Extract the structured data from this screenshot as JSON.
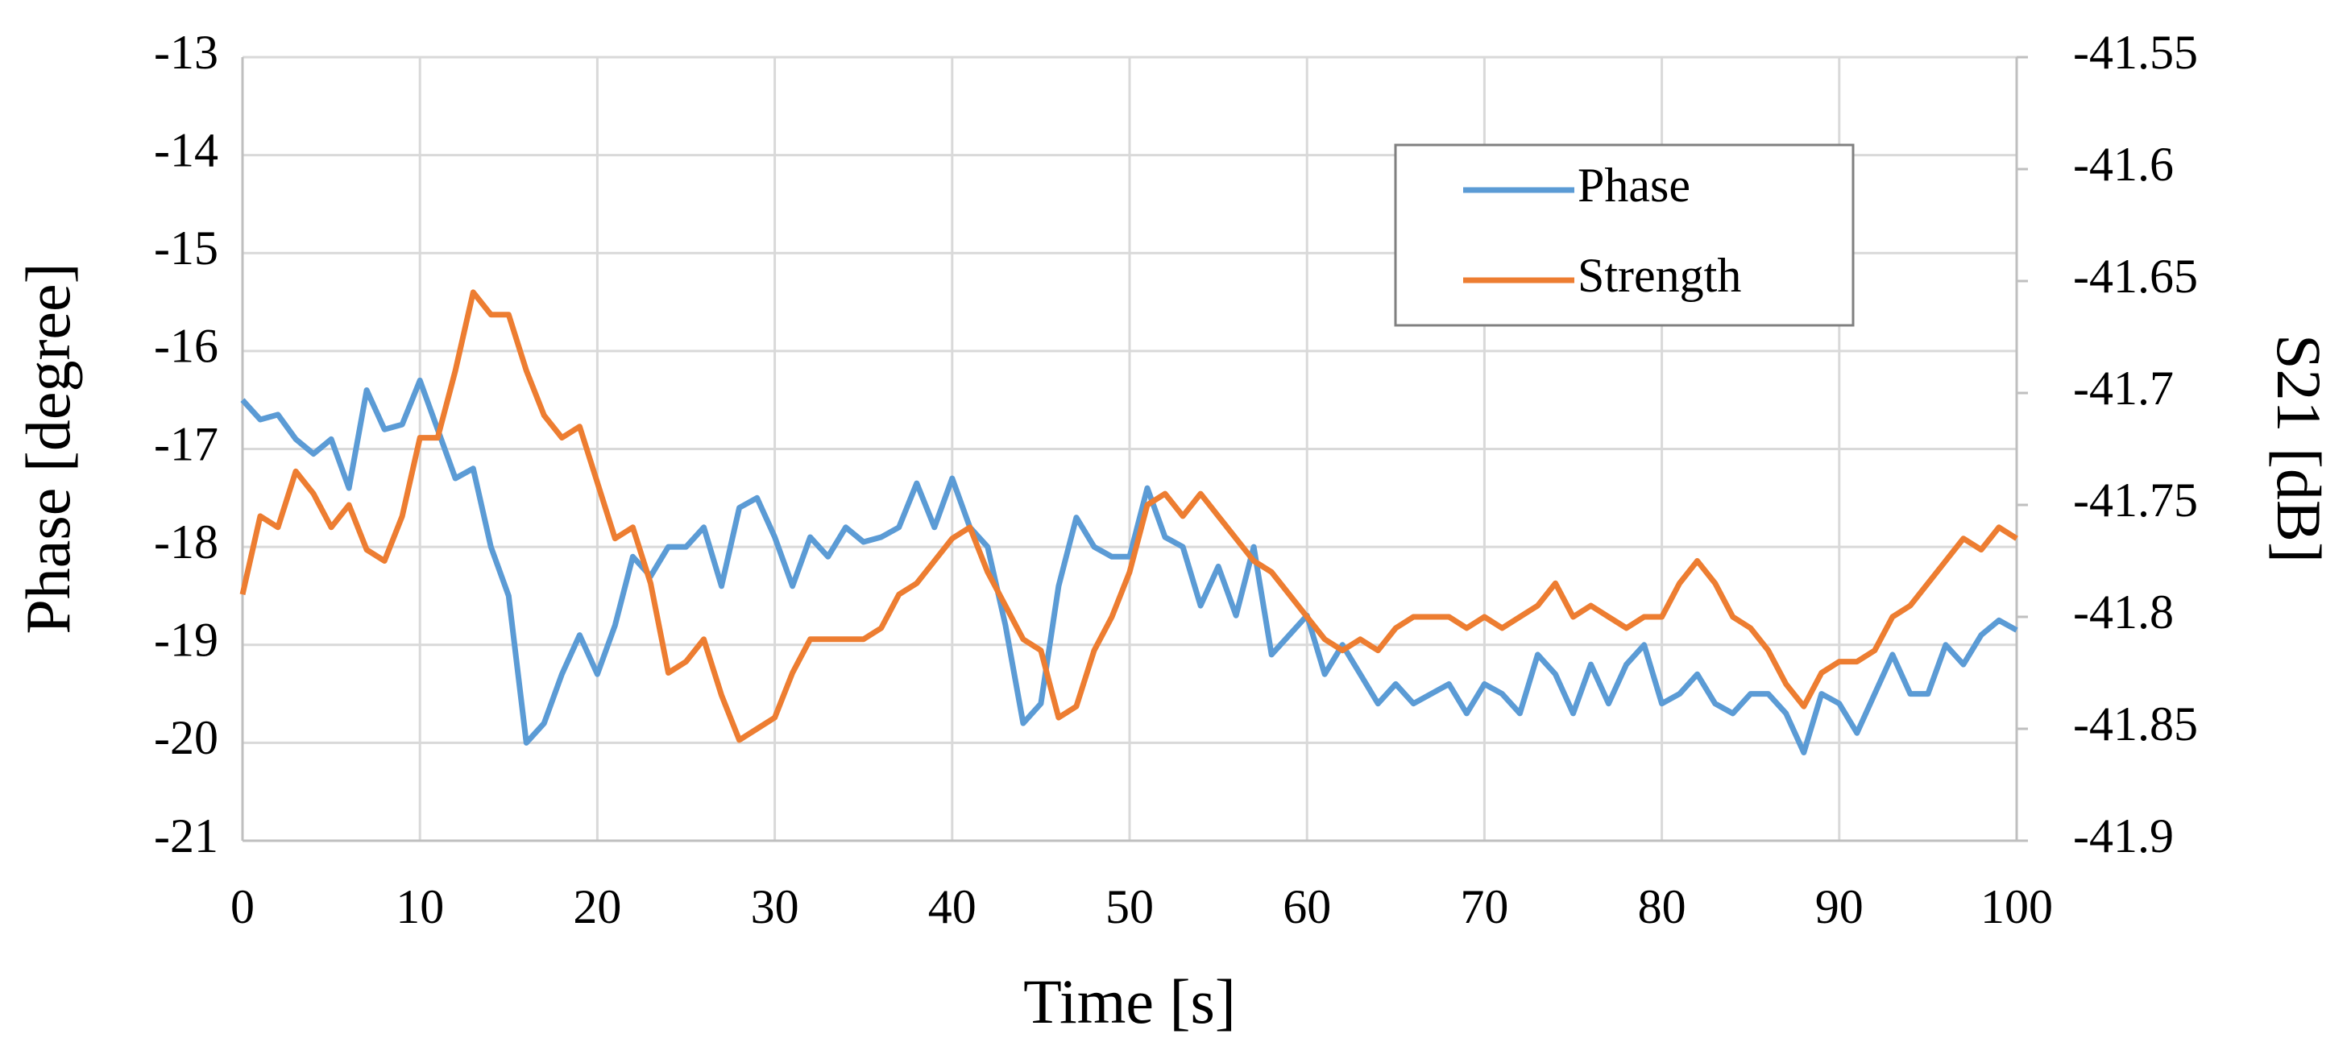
{
  "chart_data": {
    "type": "line",
    "xlabel": "Time [s]",
    "ylabel": "Phase [degree]",
    "y2label": "S21 [dB]",
    "x": [
      0,
      1,
      2,
      3,
      4,
      5,
      6,
      7,
      8,
      9,
      10,
      11,
      12,
      13,
      14,
      15,
      16,
      17,
      18,
      19,
      20,
      21,
      22,
      23,
      24,
      25,
      26,
      27,
      28,
      29,
      30,
      31,
      32,
      33,
      34,
      35,
      36,
      37,
      38,
      39,
      40,
      41,
      42,
      43,
      44,
      45,
      46,
      47,
      48,
      49,
      50,
      51,
      52,
      53,
      54,
      55,
      56,
      57,
      58,
      59,
      60,
      61,
      62,
      63,
      64,
      65,
      66,
      67,
      68,
      69,
      70,
      71,
      72,
      73,
      74,
      75,
      76,
      77,
      78,
      79,
      80,
      81,
      82,
      83,
      84,
      85,
      86,
      87,
      88,
      89,
      90,
      91,
      92,
      93,
      94,
      95,
      96,
      97,
      98,
      99,
      100
    ],
    "series": [
      {
        "name": "Phase",
        "color": "#5b9bd5",
        "axis": "y",
        "values": [
          -16.5,
          -16.7,
          -16.65,
          -16.9,
          -17.05,
          -16.9,
          -17.4,
          -16.4,
          -16.8,
          -16.75,
          -16.3,
          -16.8,
          -17.3,
          -17.2,
          -18.0,
          -18.5,
          -20.0,
          -19.8,
          -19.3,
          -18.9,
          -19.3,
          -18.8,
          -18.1,
          -18.3,
          -18.0,
          -18.0,
          -17.8,
          -18.4,
          -17.6,
          -17.5,
          -17.9,
          -18.4,
          -17.9,
          -18.1,
          -17.8,
          -17.95,
          -17.9,
          -17.8,
          -17.35,
          -17.8,
          -17.3,
          -17.8,
          -18.0,
          -18.8,
          -19.8,
          -19.6,
          -18.4,
          -17.7,
          -18.0,
          -18.1,
          -18.1,
          -17.4,
          -17.9,
          -18.0,
          -18.6,
          -18.2,
          -18.7,
          -18.0,
          -19.1,
          -18.9,
          -18.7,
          -19.3,
          -19.0,
          -19.3,
          -19.6,
          -19.4,
          -19.6,
          -19.5,
          -19.4,
          -19.7,
          -19.4,
          -19.5,
          -19.7,
          -19.1,
          -19.3,
          -19.7,
          -19.2,
          -19.6,
          -19.2,
          -19.0,
          -19.6,
          -19.5,
          -19.3,
          -19.6,
          -19.7,
          -19.5,
          -19.5,
          -19.7,
          -20.1,
          -19.5,
          -19.6,
          -19.9,
          -19.5,
          -19.1,
          -19.5,
          -19.5,
          -19.0,
          -19.2,
          -18.9,
          -18.75,
          -18.85
        ]
      },
      {
        "name": "Strength",
        "color": "#ed7d31",
        "axis": "y2",
        "values": [
          -41.79,
          -41.755,
          -41.76,
          -41.735,
          -41.745,
          -41.76,
          -41.75,
          -41.77,
          -41.775,
          -41.755,
          -41.72,
          -41.72,
          -41.69,
          -41.655,
          -41.665,
          -41.665,
          -41.69,
          -41.71,
          -41.72,
          -41.715,
          -41.74,
          -41.765,
          -41.76,
          -41.785,
          -41.825,
          -41.82,
          -41.81,
          -41.835,
          -41.855,
          -41.85,
          -41.845,
          -41.825,
          -41.81,
          -41.81,
          -41.81,
          -41.81,
          -41.805,
          -41.79,
          -41.785,
          -41.775,
          -41.765,
          -41.76,
          -41.78,
          -41.795,
          -41.81,
          -41.815,
          -41.845,
          -41.84,
          -41.815,
          -41.8,
          -41.78,
          -41.75,
          -41.745,
          -41.755,
          -41.745,
          -41.755,
          -41.765,
          -41.775,
          -41.78,
          -41.79,
          -41.8,
          -41.81,
          -41.815,
          -41.81,
          -41.815,
          -41.805,
          -41.8,
          -41.8,
          -41.8,
          -41.805,
          -41.8,
          -41.805,
          -41.8,
          -41.795,
          -41.785,
          -41.8,
          -41.795,
          -41.8,
          -41.805,
          -41.8,
          -41.8,
          -41.785,
          -41.775,
          -41.785,
          -41.8,
          -41.805,
          -41.815,
          -41.83,
          -41.84,
          -41.825,
          -41.82,
          -41.82,
          -41.815,
          -41.8,
          -41.795,
          -41.785,
          -41.775,
          -41.765,
          -41.77,
          -41.76,
          -41.765
        ]
      }
    ],
    "xlim": [
      0,
      100
    ],
    "xticks": [
      0,
      10,
      20,
      30,
      40,
      50,
      60,
      70,
      80,
      90,
      100
    ],
    "ylim": [
      -21,
      -13
    ],
    "yticks": [
      -21,
      -20,
      -19,
      -18,
      -17,
      -16,
      -15,
      -14,
      -13
    ],
    "y2lim": [
      -41.9,
      -41.55
    ],
    "y2ticks": [
      -41.9,
      -41.85,
      -41.8,
      -41.75,
      -41.7,
      -41.65,
      -41.6,
      -41.55
    ],
    "grid": true,
    "legend": "upper right"
  }
}
